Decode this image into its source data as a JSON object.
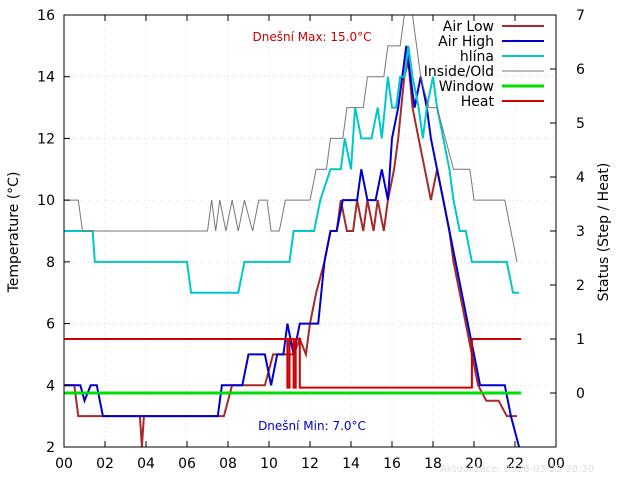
{
  "chart_data": {
    "type": "line",
    "xlabel": "",
    "ylabel": "Temperature (°C)",
    "y2label": "Status (Step / Heat)",
    "xlim": [
      0,
      24
    ],
    "ylim": [
      2,
      16
    ],
    "y2lim": [
      -1,
      7
    ],
    "x_tick_labels": [
      "00",
      "02",
      "04",
      "06",
      "08",
      "10",
      "12",
      "14",
      "16",
      "18",
      "20",
      "22",
      "00"
    ],
    "y_tick_labels": [
      "2",
      "4",
      "6",
      "8",
      "10",
      "12",
      "14",
      "16"
    ],
    "y2_tick_labels": [
      "0",
      "1",
      "2",
      "3",
      "4",
      "5",
      "6",
      "7"
    ],
    "grid": true,
    "legend_position": "top-right",
    "annotations": {
      "max_text": "Dnešní Max: 15.0°C",
      "min_text": "Dnešní Min: 7.0°C",
      "updated_text": "Aktualizace: 2026-03-25 20:30"
    },
    "series": [
      {
        "name": "Air Low",
        "color": "#a52a2a",
        "axis": "y1",
        "width": 2,
        "points": [
          [
            0,
            4
          ],
          [
            0.5,
            4
          ],
          [
            0.7,
            3
          ],
          [
            3.7,
            3
          ],
          [
            3.8,
            2
          ],
          [
            3.9,
            3
          ],
          [
            7.8,
            3
          ],
          [
            8.0,
            3.5
          ],
          [
            8.2,
            4
          ],
          [
            9.8,
            4
          ],
          [
            10.2,
            5
          ],
          [
            11.2,
            5
          ],
          [
            11.5,
            5.5
          ],
          [
            11.8,
            5
          ],
          [
            12.0,
            6
          ],
          [
            12.3,
            7
          ],
          [
            12.7,
            8
          ],
          [
            13.0,
            9
          ],
          [
            13.3,
            9
          ],
          [
            13.5,
            10
          ],
          [
            13.8,
            9
          ],
          [
            14.1,
            9
          ],
          [
            14.3,
            10
          ],
          [
            14.6,
            9
          ],
          [
            14.8,
            10
          ],
          [
            15.1,
            9
          ],
          [
            15.3,
            10
          ],
          [
            15.6,
            9
          ],
          [
            15.8,
            10
          ],
          [
            16.1,
            11
          ],
          [
            16.3,
            12
          ],
          [
            16.6,
            14
          ],
          [
            16.8,
            14.5
          ],
          [
            17.0,
            13
          ],
          [
            17.3,
            12
          ],
          [
            17.6,
            11
          ],
          [
            17.9,
            10
          ],
          [
            18.2,
            11
          ],
          [
            18.5,
            10
          ],
          [
            18.8,
            9
          ],
          [
            19.0,
            8
          ],
          [
            19.3,
            7
          ],
          [
            19.6,
            6
          ],
          [
            19.9,
            5
          ],
          [
            20.2,
            4
          ],
          [
            20.6,
            3.5
          ],
          [
            21.2,
            3.5
          ],
          [
            21.6,
            3
          ],
          [
            22.1,
            3
          ]
        ]
      },
      {
        "name": "Air High",
        "color": "#0000cc",
        "axis": "y1",
        "width": 2,
        "points": [
          [
            0,
            4
          ],
          [
            0.8,
            4
          ],
          [
            1.0,
            3.5
          ],
          [
            1.3,
            4
          ],
          [
            1.6,
            4
          ],
          [
            1.9,
            3
          ],
          [
            7.5,
            3
          ],
          [
            7.7,
            4
          ],
          [
            8.7,
            4
          ],
          [
            9.0,
            5
          ],
          [
            9.5,
            5
          ],
          [
            9.8,
            5
          ],
          [
            10.1,
            4
          ],
          [
            10.4,
            5
          ],
          [
            10.7,
            5
          ],
          [
            10.9,
            6
          ],
          [
            11.2,
            5
          ],
          [
            11.5,
            6
          ],
          [
            12.4,
            6
          ],
          [
            12.7,
            8
          ],
          [
            13.0,
            9
          ],
          [
            13.3,
            9
          ],
          [
            13.6,
            10
          ],
          [
            14.3,
            10
          ],
          [
            14.5,
            11
          ],
          [
            14.8,
            10
          ],
          [
            15.2,
            10
          ],
          [
            15.5,
            11
          ],
          [
            15.8,
            10
          ],
          [
            16.0,
            12
          ],
          [
            16.3,
            13
          ],
          [
            16.5,
            14
          ],
          [
            16.7,
            15
          ],
          [
            16.9,
            14
          ],
          [
            17.1,
            13
          ],
          [
            17.4,
            14
          ],
          [
            17.7,
            13
          ],
          [
            17.9,
            12
          ],
          [
            18.2,
            11
          ],
          [
            18.5,
            10
          ],
          [
            18.8,
            9
          ],
          [
            19.1,
            8
          ],
          [
            19.4,
            7
          ],
          [
            19.7,
            6
          ],
          [
            20.0,
            5
          ],
          [
            20.3,
            4
          ],
          [
            21.5,
            4
          ],
          [
            21.8,
            3
          ],
          [
            22.0,
            2.5
          ],
          [
            22.2,
            2
          ]
        ]
      },
      {
        "name": "hlína",
        "color": "#00c8c8",
        "axis": "y1",
        "width": 2,
        "points": [
          [
            0,
            9
          ],
          [
            1.4,
            9
          ],
          [
            1.5,
            8
          ],
          [
            6.0,
            8
          ],
          [
            6.2,
            7
          ],
          [
            8.5,
            7
          ],
          [
            8.8,
            8
          ],
          [
            11.0,
            8
          ],
          [
            11.2,
            9
          ],
          [
            12.2,
            9
          ],
          [
            12.5,
            10
          ],
          [
            13.0,
            11
          ],
          [
            13.5,
            11
          ],
          [
            13.7,
            12
          ],
          [
            14.0,
            11
          ],
          [
            14.2,
            13
          ],
          [
            14.5,
            12
          ],
          [
            15.0,
            12
          ],
          [
            15.3,
            13
          ],
          [
            15.5,
            12
          ],
          [
            15.8,
            14
          ],
          [
            16.0,
            13
          ],
          [
            16.2,
            13
          ],
          [
            16.4,
            14
          ],
          [
            16.6,
            14
          ],
          [
            16.8,
            15
          ],
          [
            17.0,
            14
          ],
          [
            17.3,
            13
          ],
          [
            17.5,
            12
          ],
          [
            17.7,
            13
          ],
          [
            18.0,
            14
          ],
          [
            18.2,
            13
          ],
          [
            18.5,
            12
          ],
          [
            18.8,
            11
          ],
          [
            19.0,
            10
          ],
          [
            19.3,
            9
          ],
          [
            19.6,
            9
          ],
          [
            19.9,
            8
          ],
          [
            21.6,
            8
          ],
          [
            21.9,
            7
          ],
          [
            22.2,
            7
          ]
        ]
      },
      {
        "name": "Inside/Old",
        "color": "#777777",
        "axis": "y1",
        "width": 1,
        "points": [
          [
            0,
            10
          ],
          [
            0.7,
            10
          ],
          [
            0.9,
            9
          ],
          [
            7.0,
            9
          ],
          [
            7.2,
            10
          ],
          [
            7.4,
            9
          ],
          [
            7.6,
            10
          ],
          [
            7.9,
            9
          ],
          [
            8.2,
            10
          ],
          [
            8.5,
            9
          ],
          [
            8.8,
            10
          ],
          [
            9.2,
            9
          ],
          [
            9.5,
            10
          ],
          [
            9.9,
            10
          ],
          [
            10.1,
            9
          ],
          [
            10.5,
            9
          ],
          [
            10.8,
            10
          ],
          [
            12.0,
            10
          ],
          [
            12.3,
            11
          ],
          [
            12.8,
            11
          ],
          [
            13.0,
            12
          ],
          [
            13.6,
            12
          ],
          [
            13.8,
            13
          ],
          [
            14.6,
            13
          ],
          [
            14.8,
            14
          ],
          [
            15.6,
            14
          ],
          [
            15.8,
            15
          ],
          [
            16.4,
            15
          ],
          [
            16.6,
            16
          ],
          [
            17.0,
            16
          ],
          [
            17.2,
            15
          ],
          [
            17.4,
            14
          ],
          [
            17.8,
            13
          ],
          [
            18.2,
            13
          ],
          [
            18.6,
            12
          ],
          [
            19.0,
            11
          ],
          [
            19.8,
            11
          ],
          [
            20.0,
            10
          ],
          [
            21.5,
            10
          ],
          [
            21.8,
            9
          ],
          [
            22.1,
            8
          ]
        ]
      },
      {
        "name": "Window",
        "color": "#00dd00",
        "axis": "y2",
        "width": 3,
        "points": [
          [
            0,
            0
          ],
          [
            22.3,
            0
          ]
        ]
      },
      {
        "name": "Heat",
        "color": "#cc0000",
        "axis": "y2",
        "width": 2,
        "points": [
          [
            0,
            1
          ],
          [
            10.9,
            1
          ],
          [
            10.9,
            0.1
          ],
          [
            11.0,
            0.1
          ],
          [
            11.0,
            1
          ],
          [
            11.2,
            1
          ],
          [
            11.2,
            0.1
          ],
          [
            11.3,
            0.1
          ],
          [
            11.3,
            1
          ],
          [
            11.5,
            1
          ],
          [
            11.5,
            0.1
          ],
          [
            19.9,
            0.1
          ],
          [
            19.9,
            1
          ],
          [
            22.3,
            1
          ]
        ]
      }
    ]
  }
}
